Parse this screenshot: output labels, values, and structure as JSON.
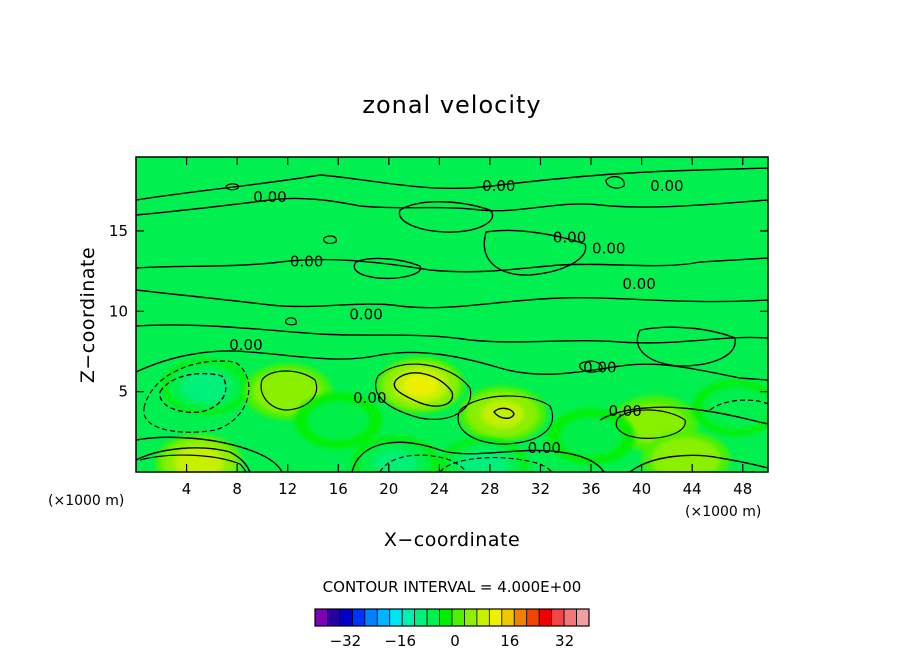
{
  "chart_data": {
    "type": "contour",
    "title": "zonal velocity",
    "xlabel": "X−coordinate",
    "ylabel": "Z−coordinate",
    "x_unit": "(×1000 m)",
    "y_unit": "(×1000 m)",
    "xlim": [
      0,
      50
    ],
    "ylim": [
      0,
      19.6
    ],
    "x_ticks": [
      4,
      8,
      12,
      16,
      20,
      24,
      28,
      32,
      36,
      40,
      44,
      48
    ],
    "y_ticks": [
      5,
      10,
      15
    ],
    "contour_interval_text": "CONTOUR INTERVAL = 4.000E+00",
    "contour_interval": 4.0,
    "contour_label": "0.00",
    "contour_label_positions": [
      [
        10.6,
        17.1
      ],
      [
        28.7,
        17.8
      ],
      [
        42.0,
        17.8
      ],
      [
        34.3,
        14.6
      ],
      [
        37.4,
        13.9
      ],
      [
        13.5,
        13.1
      ],
      [
        39.8,
        11.7
      ],
      [
        18.2,
        9.8
      ],
      [
        8.7,
        7.9
      ],
      [
        36.7,
        6.5
      ],
      [
        18.5,
        4.6
      ],
      [
        38.7,
        3.8
      ],
      [
        32.3,
        1.5
      ]
    ],
    "colorbar": {
      "min": -40,
      "max": 40,
      "step": 4,
      "tick_values": [
        -32,
        -16,
        0,
        16,
        32
      ],
      "tick_labels": [
        "−32",
        "−16",
        "0",
        "16",
        "32"
      ],
      "colors": [
        "#7d00b4",
        "#2800a0",
        "#0000c8",
        "#0032ff",
        "#0082ff",
        "#00b4ff",
        "#00e6f0",
        "#00f0b4",
        "#00f07d",
        "#00f050",
        "#00f000",
        "#50f000",
        "#8cf000",
        "#c8f000",
        "#f0f000",
        "#f0c800",
        "#f08200",
        "#f04600",
        "#f00000",
        "#f04646",
        "#f07878",
        "#f0a0a0"
      ]
    },
    "velocity_features": [
      {
        "x": 5.5,
        "z": 5.3,
        "value": -10
      },
      {
        "x": 5.0,
        "z": 0.6,
        "value": 11
      },
      {
        "x": 22.5,
        "z": 5.4,
        "value": 13
      },
      {
        "x": 29.0,
        "z": 3.6,
        "value": 9
      },
      {
        "x": 12.0,
        "z": 5.0,
        "value": 6
      },
      {
        "x": 41.0,
        "z": 3.0,
        "value": 5
      },
      {
        "x": 20.5,
        "z": 0.5,
        "value": -9
      },
      {
        "x": 27.5,
        "z": 0.4,
        "value": -11
      },
      {
        "x": 47.5,
        "z": 4.0,
        "value": -6
      },
      {
        "x": 43.5,
        "z": 0.8,
        "value": 7
      },
      {
        "x": 36.0,
        "z": 2.2,
        "value": -5
      },
      {
        "x": 16.0,
        "z": 3.2,
        "value": -4
      }
    ]
  }
}
